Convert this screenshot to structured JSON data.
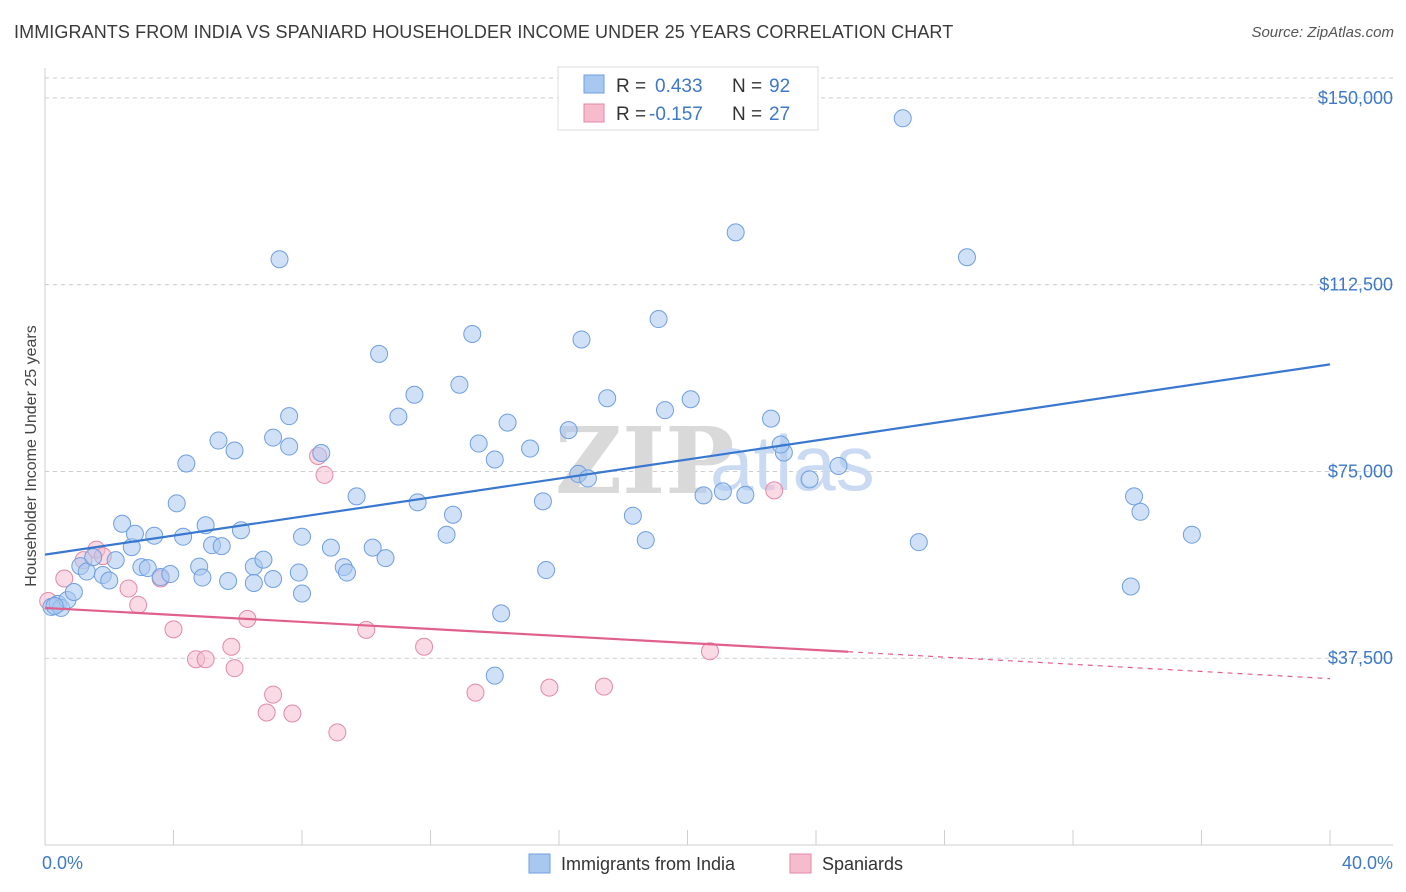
{
  "title": "IMMIGRANTS FROM INDIA VS SPANIARD HOUSEHOLDER INCOME UNDER 25 YEARS CORRELATION CHART",
  "source": "Source: ZipAtlas.com",
  "watermark": {
    "zip": "ZIP",
    "atlas": "atlas"
  },
  "colors": {
    "blue": "#3a78d0",
    "blue_fill": "#a9c8f0",
    "pink": "#e0608a",
    "pink_fill": "#f6bccd",
    "axis_text": "#3e78c8",
    "grid": "#cccccc"
  },
  "legend_top": {
    "rows": [
      {
        "r_label": "R =",
        "r_value": "0.433",
        "n_label": "N =",
        "n_value": "92",
        "color": "blue"
      },
      {
        "r_label": "R =",
        "r_value": "-0.157",
        "n_label": "N =",
        "n_value": "27",
        "color": "pink"
      }
    ]
  },
  "legend_bottom": {
    "series1": "Immigrants from India",
    "series2": "Spaniards"
  },
  "chart_data": {
    "type": "scatter",
    "title": "IMMIGRANTS FROM INDIA VS SPANIARD HOUSEHOLDER INCOME UNDER 25 YEARS CORRELATION CHART",
    "xlabel": "",
    "ylabel": "Householder Income Under 25 years",
    "xlim": [
      0,
      40
    ],
    "ylim": [
      0,
      156000
    ],
    "x_tick_labels": [
      "0.0%",
      "40.0%"
    ],
    "y_ticks": [
      37500,
      75000,
      112500,
      150000
    ],
    "y_tick_labels": [
      "$37,500",
      "$75,000",
      "$112,500",
      "$150,000"
    ],
    "grid": "horizontal dashed",
    "legend_placement": "top-center",
    "series": [
      {
        "name": "Immigrants from India",
        "color": "blue",
        "points": [
          [
            0.2,
            47800
          ],
          [
            0.4,
            48400
          ],
          [
            0.5,
            47600
          ],
          [
            0.7,
            49200
          ],
          [
            0.9,
            50800
          ],
          [
            1.1,
            56000
          ],
          [
            1.3,
            54900
          ],
          [
            1.5,
            57800
          ],
          [
            1.8,
            54200
          ],
          [
            2.0,
            53100
          ],
          [
            2.2,
            57200
          ],
          [
            2.4,
            64500
          ],
          [
            2.7,
            59800
          ],
          [
            2.8,
            62500
          ],
          [
            3.0,
            55800
          ],
          [
            3.2,
            55600
          ],
          [
            3.4,
            62100
          ],
          [
            3.6,
            53800
          ],
          [
            3.9,
            54400
          ],
          [
            4.1,
            68600
          ],
          [
            4.3,
            61900
          ],
          [
            4.4,
            76600
          ],
          [
            4.8,
            55900
          ],
          [
            4.9,
            53700
          ],
          [
            5.0,
            64200
          ],
          [
            5.2,
            60200
          ],
          [
            5.4,
            81200
          ],
          [
            5.5,
            60000
          ],
          [
            5.7,
            53000
          ],
          [
            5.9,
            79200
          ],
          [
            6.1,
            63200
          ],
          [
            6.5,
            55900
          ],
          [
            6.5,
            52600
          ],
          [
            6.8,
            57300
          ],
          [
            7.1,
            53400
          ],
          [
            7.1,
            81800
          ],
          [
            7.3,
            117600
          ],
          [
            7.6,
            86100
          ],
          [
            7.6,
            80000
          ],
          [
            7.9,
            54700
          ],
          [
            8.0,
            50500
          ],
          [
            8.0,
            61900
          ],
          [
            8.6,
            78700
          ],
          [
            8.9,
            59700
          ],
          [
            9.3,
            55800
          ],
          [
            9.4,
            54700
          ],
          [
            9.7,
            70000
          ],
          [
            10.2,
            59700
          ],
          [
            10.6,
            57600
          ],
          [
            10.4,
            98600
          ],
          [
            11.0,
            86000
          ],
          [
            11.6,
            68800
          ],
          [
            11.5,
            90400
          ],
          [
            12.5,
            62300
          ],
          [
            12.7,
            66300
          ],
          [
            12.9,
            92400
          ],
          [
            13.3,
            102600
          ],
          [
            13.5,
            80600
          ],
          [
            14.0,
            77400
          ],
          [
            14.2,
            46500
          ],
          [
            14.4,
            84800
          ],
          [
            15.1,
            79600
          ],
          [
            15.5,
            69000
          ],
          [
            15.6,
            55200
          ],
          [
            16.3,
            83300
          ],
          [
            16.6,
            74500
          ],
          [
            16.7,
            101500
          ],
          [
            17.5,
            89700
          ],
          [
            18.3,
            66100
          ],
          [
            18.7,
            61200
          ],
          [
            19.1,
            105600
          ],
          [
            19.3,
            87300
          ],
          [
            20.1,
            89500
          ],
          [
            20.5,
            70200
          ],
          [
            21.1,
            71000
          ],
          [
            21.5,
            123000
          ],
          [
            21.8,
            70300
          ],
          [
            22.6,
            85600
          ],
          [
            23.0,
            78800
          ],
          [
            23.8,
            73400
          ],
          [
            24.7,
            76100
          ],
          [
            26.7,
            145900
          ],
          [
            27.2,
            60800
          ],
          [
            28.7,
            118000
          ],
          [
            33.8,
            51900
          ],
          [
            33.9,
            70000
          ],
          [
            34.1,
            66900
          ],
          [
            35.7,
            62300
          ],
          [
            0.3,
            48000
          ],
          [
            14.0,
            34000
          ],
          [
            22.9,
            80400
          ],
          [
            16.9,
            73600
          ]
        ]
      },
      {
        "name": "Spaniards",
        "color": "pink",
        "points": [
          [
            0.1,
            49000
          ],
          [
            0.6,
            53500
          ],
          [
            1.2,
            57200
          ],
          [
            1.6,
            59300
          ],
          [
            1.8,
            58000
          ],
          [
            2.6,
            51500
          ],
          [
            2.9,
            48200
          ],
          [
            3.6,
            53500
          ],
          [
            4.0,
            43300
          ],
          [
            4.7,
            37300
          ],
          [
            5.0,
            37300
          ],
          [
            5.8,
            39800
          ],
          [
            5.9,
            35500
          ],
          [
            6.3,
            45400
          ],
          [
            7.1,
            30200
          ],
          [
            6.9,
            26600
          ],
          [
            7.7,
            26400
          ],
          [
            8.5,
            78100
          ],
          [
            8.7,
            74300
          ],
          [
            9.1,
            22600
          ],
          [
            10.0,
            43200
          ],
          [
            11.8,
            39800
          ],
          [
            13.4,
            30600
          ],
          [
            15.7,
            31600
          ],
          [
            17.4,
            31800
          ],
          [
            20.7,
            38900
          ],
          [
            22.7,
            71200
          ]
        ]
      }
    ],
    "trendlines": [
      {
        "series": "Immigrants from India",
        "x": [
          0,
          40
        ],
        "y": [
          58300,
          96500
        ]
      },
      {
        "series": "Spaniards",
        "x": [
          0,
          25
        ],
        "y": [
          47600,
          38800
        ],
        "dashed_extension_to": [
          40,
          33400
        ]
      }
    ]
  }
}
